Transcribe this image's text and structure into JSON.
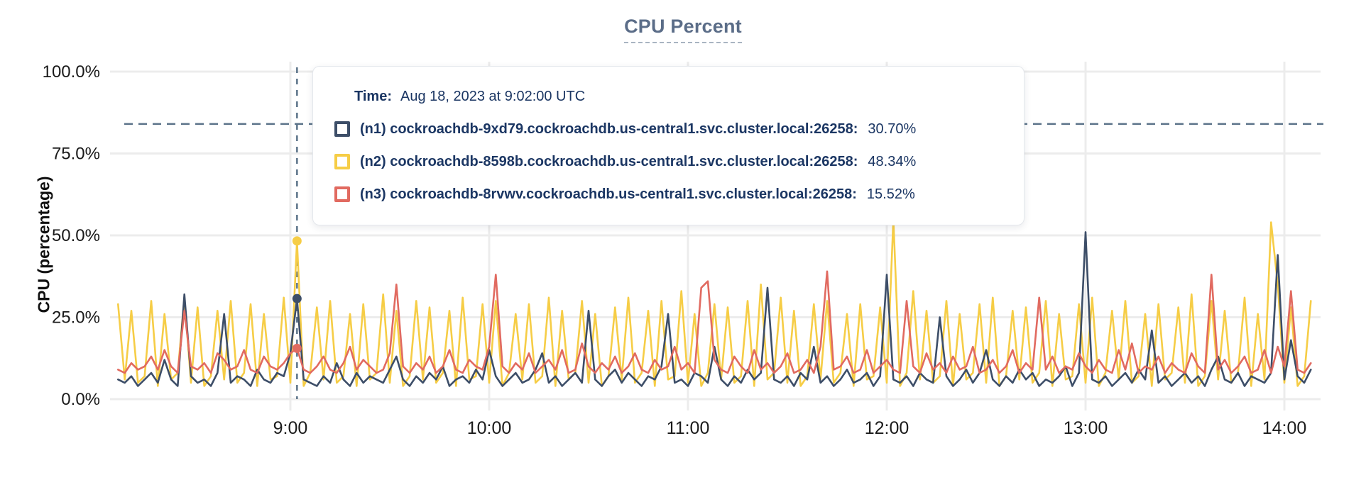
{
  "title": "CPU Percent",
  "y_axis_title": "CPU (percentage)",
  "tooltip": {
    "time_label": "Time:",
    "time_value": "Aug 18, 2023 at 9:02:00 UTC",
    "rows": [
      {
        "label": "(n1) cockroachdb-9xd79.cockroachdb.us-central1.svc.cluster.local:26258:",
        "value": "30.70%"
      },
      {
        "label": "(n2) cockroachdb-8598b.cockroachdb.us-central1.svc.cluster.local:26258:",
        "value": "48.34%"
      },
      {
        "label": "(n3) cockroachdb-8rvwv.cockroachdb.us-central1.svc.cluster.local:26258:",
        "value": "15.52%"
      }
    ]
  },
  "colors": {
    "series_n1": "#3d4e68",
    "series_n2": "#f6cd46",
    "series_n3": "#e16a60",
    "gridline": "#ececec",
    "guide_dashed": "#5b7389",
    "tooltip_text": "#1b3663",
    "title_text": "#5b6d88",
    "axis_text": "#1a1a1a"
  },
  "chart_data": {
    "type": "line",
    "title": "CPU Percent",
    "ylabel": "CPU (percentage)",
    "ylim": [
      0,
      100
    ],
    "grid": true,
    "y_ticks": [
      {
        "label": "100.0%",
        "value": 100
      },
      {
        "label": "75.0%",
        "value": 75
      },
      {
        "label": "50.0%",
        "value": 50
      },
      {
        "label": "25.0%",
        "value": 25
      },
      {
        "label": "0.0%",
        "value": 0
      }
    ],
    "x_ticks": [
      {
        "label": "9:00",
        "minute": 540
      },
      {
        "label": "10:00",
        "minute": 600
      },
      {
        "label": "11:00",
        "minute": 660
      },
      {
        "label": "12:00",
        "minute": 720
      },
      {
        "label": "13:00",
        "minute": 780
      },
      {
        "label": "14:00",
        "minute": 840
      }
    ],
    "time_start_minute": 488,
    "time_step_minutes": 2,
    "threshold_pct": 84,
    "hover": {
      "index": 27,
      "time": "9:02:00",
      "values_pct": [
        30.7,
        48.34,
        15.52
      ]
    },
    "series": [
      {
        "name": "(n1) cockroachdb-9xd79.cockroachdb.us-central1.svc.cluster.local:26258",
        "color": "#3d4e68",
        "values": [
          6,
          5,
          7,
          4,
          6,
          8,
          5,
          12,
          6,
          4,
          32,
          7,
          5,
          6,
          4,
          8,
          26,
          5,
          7,
          6,
          4,
          9,
          6,
          5,
          8,
          7,
          14,
          30.7,
          6,
          5,
          4,
          7,
          5,
          11,
          6,
          4,
          8,
          5,
          7,
          6,
          5,
          9,
          13,
          6,
          4,
          7,
          5,
          8,
          6,
          10,
          4,
          6,
          7,
          5,
          9,
          6,
          15,
          7,
          4,
          6,
          8,
          5,
          6,
          9,
          14,
          5,
          7,
          4,
          6,
          8,
          5,
          27,
          6,
          4,
          7,
          9,
          5,
          8,
          6,
          4,
          7,
          6,
          10,
          26,
          5,
          6,
          4,
          8,
          7,
          5,
          16,
          6,
          4,
          7,
          5,
          9,
          6,
          8,
          34,
          6,
          5,
          7,
          4,
          8,
          6,
          16,
          5,
          7,
          4,
          6,
          9,
          5,
          6,
          8,
          4,
          7,
          38,
          6,
          5,
          7,
          4,
          8,
          6,
          5,
          25,
          7,
          4,
          6,
          9,
          5,
          8,
          15,
          6,
          4,
          7,
          5,
          9,
          6,
          8,
          4,
          6,
          5,
          7,
          10,
          4,
          8,
          51,
          6,
          5,
          7,
          4,
          6,
          8,
          5,
          9,
          6,
          21,
          5,
          7,
          4,
          6,
          8,
          5,
          7,
          4,
          9,
          13,
          6,
          5,
          8,
          4,
          7,
          6,
          5,
          8,
          44,
          6,
          18,
          7,
          5,
          9
        ]
      },
      {
        "name": "(n2) cockroachdb-8598b.cockroachdb.us-central1.svc.cluster.local:26258",
        "color": "#f6cd46",
        "values": [
          29,
          6,
          27,
          5,
          7,
          30,
          4,
          26,
          6,
          8,
          31,
          5,
          28,
          4,
          7,
          27,
          6,
          30,
          5,
          8,
          29,
          4,
          26,
          6,
          7,
          31,
          5,
          48.3,
          4,
          8,
          28,
          6,
          30,
          5,
          7,
          26,
          4,
          29,
          6,
          8,
          32,
          5,
          27,
          4,
          7,
          30,
          6,
          28,
          5,
          8,
          27,
          4,
          31,
          6,
          7,
          29,
          5,
          30,
          4,
          8,
          26,
          6,
          29,
          5,
          7,
          31,
          4,
          27,
          6,
          8,
          30,
          5,
          26,
          4,
          7,
          28,
          6,
          31,
          5,
          8,
          27,
          4,
          30,
          6,
          7,
          33,
          5,
          26,
          4,
          8,
          29,
          6,
          28,
          5,
          7,
          30,
          4,
          35,
          6,
          8,
          31,
          5,
          27,
          4,
          7,
          29,
          6,
          30,
          5,
          8,
          26,
          4,
          29,
          6,
          7,
          28,
          5,
          55,
          4,
          8,
          33,
          6,
          27,
          5,
          7,
          30,
          4,
          26,
          6,
          8,
          29,
          5,
          31,
          4,
          7,
          27,
          6,
          28,
          5,
          8,
          30,
          4,
          26,
          6,
          7,
          29,
          5,
          31,
          4,
          8,
          27,
          6,
          30,
          5,
          7,
          26,
          4,
          29,
          6,
          8,
          28,
          5,
          32,
          4,
          7,
          30,
          6,
          27,
          5,
          8,
          31,
          4,
          26,
          6,
          54,
          35,
          5,
          28,
          4,
          7,
          30
        ]
      },
      {
        "name": "(n3) cockroachdb-8rvwv.cockroachdb.us-central1.svc.cluster.local:26258",
        "color": "#e16a60",
        "values": [
          9,
          8,
          11,
          9,
          10,
          13,
          9,
          15,
          10,
          8,
          27,
          10,
          9,
          11,
          8,
          14,
          12,
          9,
          10,
          15,
          9,
          8,
          13,
          10,
          9,
          11,
          14,
          15.5,
          9,
          8,
          10,
          13,
          9,
          8,
          11,
          16,
          9,
          12,
          10,
          8,
          9,
          14,
          35,
          10,
          8,
          11,
          9,
          13,
          8,
          10,
          15,
          9,
          8,
          12,
          10,
          9,
          16,
          38,
          10,
          8,
          11,
          9,
          14,
          8,
          10,
          12,
          9,
          15,
          8,
          9,
          17,
          10,
          8,
          11,
          9,
          13,
          8,
          10,
          14,
          9,
          8,
          12,
          9,
          10,
          16,
          9,
          11,
          8,
          34,
          36,
          12,
          9,
          8,
          13,
          10,
          8,
          15,
          9,
          11,
          8,
          10,
          14,
          8,
          9,
          12,
          8,
          16,
          39,
          9,
          10,
          13,
          8,
          9,
          15,
          8,
          10,
          12,
          9,
          8,
          30,
          10,
          8,
          14,
          9,
          11,
          8,
          13,
          9,
          10,
          16,
          8,
          9,
          12,
          8,
          10,
          15,
          8,
          11,
          9,
          31,
          9,
          13,
          8,
          10,
          9,
          14,
          10,
          8,
          12,
          9,
          8,
          15,
          9,
          17,
          8,
          10,
          9,
          13,
          8,
          11,
          9,
          8,
          14,
          10,
          8,
          38,
          9,
          12,
          8,
          10,
          13,
          8,
          9,
          15,
          8,
          16,
          10,
          33,
          9,
          8,
          11
        ]
      }
    ]
  }
}
